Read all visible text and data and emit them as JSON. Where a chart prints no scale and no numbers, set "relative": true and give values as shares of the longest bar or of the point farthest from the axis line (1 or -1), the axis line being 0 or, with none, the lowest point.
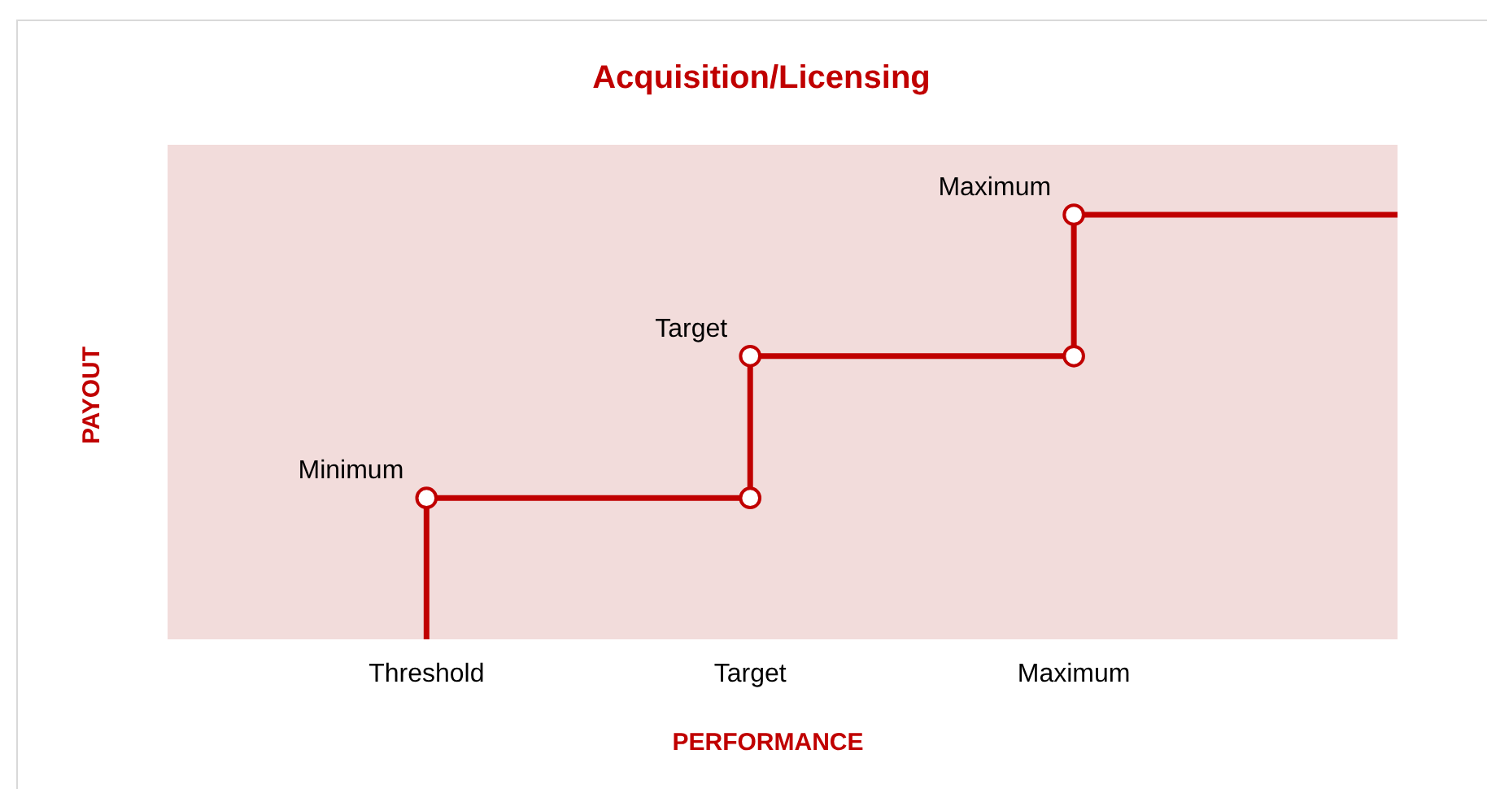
{
  "chart_data": {
    "type": "step",
    "title": "Acquisition/Licensing",
    "xlabel": "PERFORMANCE",
    "ylabel": "PAYOUT",
    "relative": true,
    "categories": [
      "Threshold",
      "Target",
      "Maximum",
      null
    ],
    "series": [
      {
        "color": "#c00000",
        "values": [
          0,
          0.333,
          0.667,
          1
        ]
      }
    ],
    "marker": "circle",
    "annotations": [
      {
        "text": "Minimum",
        "x": "Threshold",
        "y": 0.333
      },
      {
        "text": "Target",
        "x": "Target",
        "y": 0.667
      },
      {
        "text": "Maximum",
        "x": "Maximum",
        "y": 1
      }
    ]
  }
}
